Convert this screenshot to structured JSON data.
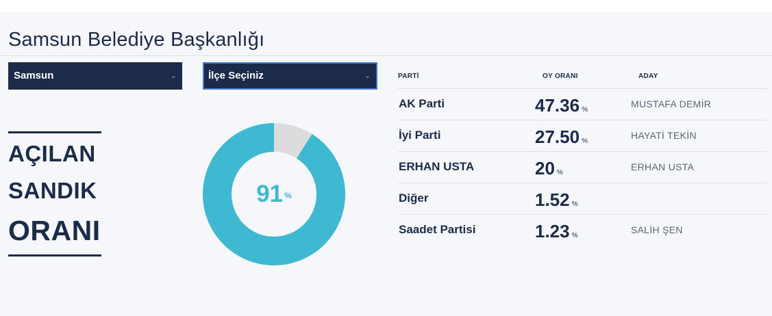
{
  "title": "Samsun Belediye Başkanlığı",
  "selects": {
    "city": {
      "value": "Samsun",
      "icon": "chevron-down-icon"
    },
    "district": {
      "value": "İlçe Seçiniz",
      "icon": "chevron-down-icon"
    }
  },
  "turnout": {
    "line1": "AÇILAN",
    "line2": "SANDIK",
    "line3": "ORANI",
    "percent": 91,
    "value_text": "91",
    "unit": "%",
    "colors": {
      "filled": "#3fb8d2",
      "remaining": "#dcdcdc"
    }
  },
  "results": {
    "headers": {
      "party": "PARTİ",
      "rate": "OY ORANI",
      "candidate": "ADAY"
    },
    "unit": "%",
    "rows": [
      {
        "party": "AK Parti",
        "rate": "47.36",
        "candidate": "MUSTAFA DEMİR"
      },
      {
        "party": "İyi Parti",
        "rate": "27.50",
        "candidate": "HAYATİ TEKİN"
      },
      {
        "party": "ERHAN USTA",
        "rate": "20",
        "candidate": "ERHAN USTA"
      },
      {
        "party": "Diğer",
        "rate": "1.52",
        "candidate": ""
      },
      {
        "party": "Saadet Partisi",
        "rate": "1.23",
        "candidate": "SALİH ŞEN"
      }
    ]
  }
}
